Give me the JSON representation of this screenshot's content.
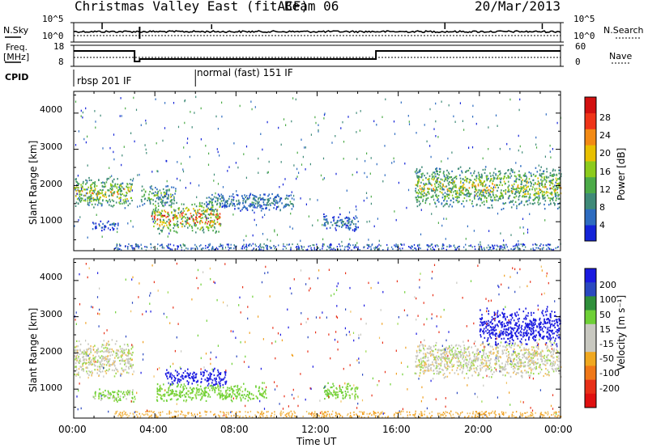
{
  "header": {
    "title": "Christmas Valley East (fitACF)",
    "beam": "Beam 06",
    "date": "20/Mar/2013"
  },
  "top_panels": {
    "nsky_label": "N.Sky",
    "nsky_ticks": [
      "10^5",
      "10^0"
    ],
    "nsearch_label": "N.Search",
    "nsearch_ticks": [
      "10^5",
      "10^0"
    ],
    "freq_label_1": "Freq.",
    "freq_label_2": "[MHz]",
    "freq_ticks": [
      "18",
      "8"
    ],
    "nave_label": "Nave",
    "nave_ticks": [
      "60",
      "0"
    ],
    "cpid_label": "CPID",
    "cpid_modes": [
      "rbsp 201 IF",
      "normal (fast) 151 IF"
    ]
  },
  "chart_data": [
    {
      "type": "heatmap",
      "title": "",
      "ylabel": "Slant Range [km]",
      "xlabel": "",
      "x_ticks": [
        "00:00",
        "04:00",
        "08:00",
        "12:00",
        "16:00",
        "20:00",
        "00:00"
      ],
      "y_ticks": [
        1000,
        2000,
        3000,
        4000
      ],
      "ylim": [
        200,
        4600
      ],
      "xlim_hours": [
        0,
        24
      ],
      "colorbar": {
        "label": "Power [dB]",
        "ticks": [
          4,
          8,
          12,
          16,
          20,
          24,
          28
        ],
        "range": [
          0,
          32
        ],
        "colors": [
          "#1424d8",
          "#2e6cc0",
          "#3f8a78",
          "#4cab48",
          "#8ccb1c",
          "#e8c000",
          "#f38a14",
          "#ef3418",
          "#d21010"
        ]
      },
      "echo_regions": [
        {
          "t": [
            0.0,
            2.9
          ],
          "r": [
            1350,
            2300
          ],
          "peak_db": 24
        },
        {
          "t": [
            0.9,
            2.2
          ],
          "r": [
            760,
            1050
          ],
          "peak_db": 8
        },
        {
          "t": [
            3.3,
            5.0
          ],
          "r": [
            1450,
            2050
          ],
          "peak_db": 20
        },
        {
          "t": [
            3.8,
            7.2
          ],
          "r": [
            650,
            1600
          ],
          "peak_db": 32
        },
        {
          "t": [
            6.5,
            10.8
          ],
          "r": [
            1300,
            1850
          ],
          "peak_db": 12
        },
        {
          "t": [
            12.3,
            14.0
          ],
          "r": [
            750,
            1250
          ],
          "peak_db": 10
        },
        {
          "t": [
            16.8,
            24.0
          ],
          "r": [
            1350,
            2600
          ],
          "peak_db": 24
        }
      ]
    },
    {
      "type": "heatmap",
      "title": "",
      "ylabel": "Slant Range [km]",
      "xlabel": "Time UT",
      "x_ticks": [
        "00:00",
        "04:00",
        "08:00",
        "12:00",
        "16:00",
        "20:00",
        "00:00"
      ],
      "y_ticks": [
        1000,
        2000,
        3000,
        4000
      ],
      "ylim": [
        200,
        4600
      ],
      "xlim_hours": [
        0,
        24
      ],
      "colorbar": {
        "label": "Velocity [m s⁻¹]",
        "ticks": [
          200,
          100,
          50,
          15,
          -15,
          -50,
          -100,
          -200
        ],
        "colors": [
          "#1a1ae0",
          "#2a48c0",
          "#2f8f3a",
          "#6ed036",
          "#c8c8c0",
          "#c8c8c0",
          "#f0a820",
          "#f07818",
          "#e83018",
          "#e01010"
        ]
      },
      "echo_regions": [
        {
          "t": [
            0.0,
            2.9
          ],
          "r": [
            1300,
            2400
          ],
          "velocity": 0
        },
        {
          "t": [
            1.0,
            3.0
          ],
          "r": [
            650,
            1050
          ],
          "velocity": 30
        },
        {
          "t": [
            4.5,
            7.5
          ],
          "r": [
            1100,
            1600
          ],
          "velocity": 200
        },
        {
          "t": [
            4.0,
            9.5
          ],
          "r": [
            650,
            1200
          ],
          "velocity": 40
        },
        {
          "t": [
            12.3,
            14.0
          ],
          "r": [
            700,
            1200
          ],
          "velocity": 40
        },
        {
          "t": [
            16.8,
            24.0
          ],
          "r": [
            1300,
            2400
          ],
          "velocity": 0
        },
        {
          "t": [
            20.0,
            24.0
          ],
          "r": [
            2200,
            3300
          ],
          "velocity": 200
        }
      ]
    }
  ]
}
